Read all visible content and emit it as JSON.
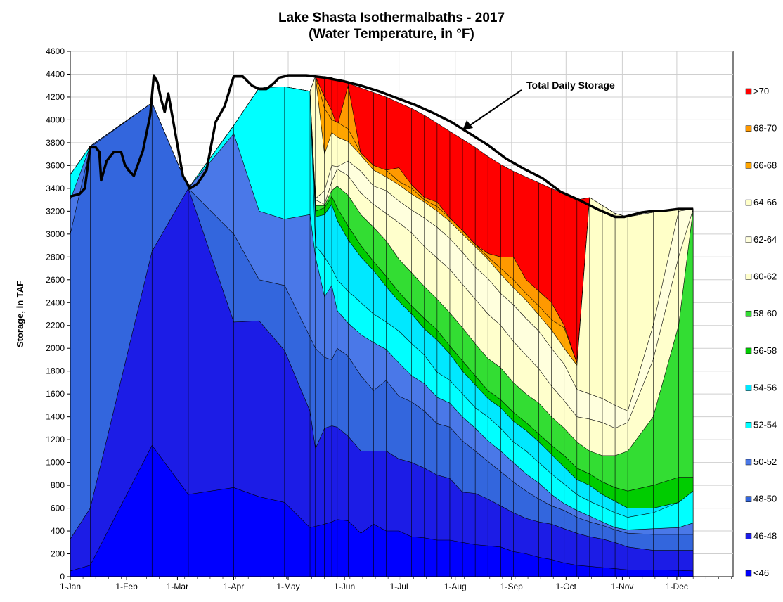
{
  "chart_data": {
    "type": "area",
    "title": "Lake Shasta Isothermalbaths - 2017",
    "subtitle": "(Water Temperature, in °F)",
    "ylabel": "Storage, in TAF",
    "xlabel": "",
    "ylim": [
      0,
      4600
    ],
    "y_ticks": [
      0,
      200,
      400,
      600,
      800,
      1000,
      1200,
      1400,
      1600,
      1800,
      2000,
      2200,
      2400,
      2600,
      2800,
      3000,
      3200,
      3400,
      3600,
      3800,
      4000,
      4200,
      4400,
      4600
    ],
    "x_ticks": [
      {
        "day": 0,
        "label": "1-Jan"
      },
      {
        "day": 31,
        "label": "1-Feb"
      },
      {
        "day": 59,
        "label": "1-Mar"
      },
      {
        "day": 90,
        "label": "1-Apr"
      },
      {
        "day": 120,
        "label": "1-May"
      },
      {
        "day": 151,
        "label": "1-Jun"
      },
      {
        "day": 181,
        "label": "1-Jul"
      },
      {
        "day": 212,
        "label": "1-Aug"
      },
      {
        "day": 243,
        "label": "1-Sep"
      },
      {
        "day": 273,
        "label": "1-Oct"
      },
      {
        "day": 304,
        "label": "1-Nov"
      },
      {
        "day": 334,
        "label": "1-Dec"
      }
    ],
    "grid": true,
    "legend_position": "right",
    "annotation": "Total Daily Storage",
    "x_days": [
      0,
      11,
      45,
      65,
      90,
      104,
      118,
      132,
      135,
      140,
      144,
      147,
      153,
      160,
      167,
      174,
      181,
      188,
      195,
      202,
      209,
      216,
      223,
      230,
      237,
      244,
      251,
      258,
      265,
      272,
      279,
      286,
      293,
      300,
      307,
      321,
      335,
      343
    ],
    "series": [
      {
        "name": "<46",
        "color": "#0000FF",
        "values": [
          50,
          100,
          1150,
          720,
          780,
          700,
          650,
          430,
          440,
          460,
          480,
          500,
          490,
          380,
          460,
          400,
          400,
          350,
          340,
          320,
          320,
          300,
          280,
          270,
          260,
          220,
          200,
          170,
          150,
          120,
          100,
          90,
          80,
          70,
          60,
          60,
          55,
          50
        ]
      },
      {
        "name": "46-48",
        "color": "#1C1CE6",
        "values": [
          330,
          600,
          2850,
          3400,
          2230,
          2240,
          1980,
          1450,
          1120,
          1300,
          1320,
          1310,
          1230,
          1100,
          1100,
          1100,
          1030,
          1000,
          950,
          890,
          860,
          740,
          730,
          680,
          620,
          560,
          510,
          480,
          460,
          420,
          380,
          350,
          330,
          300,
          260,
          230,
          230,
          230
        ]
      },
      {
        "name": "48-50",
        "color": "#3366DD",
        "values": [
          3000,
          3760,
          4150,
          3400,
          3000,
          2600,
          2550,
          2100,
          2000,
          1920,
          1900,
          2000,
          1930,
          1760,
          1630,
          1720,
          1580,
          1530,
          1450,
          1340,
          1310,
          1190,
          1100,
          1010,
          920,
          830,
          750,
          680,
          620,
          580,
          520,
          480,
          450,
          410,
          380,
          370,
          370,
          370
        ]
      },
      {
        "name": "50-52",
        "color": "#4A78E8",
        "values": [
          3300,
          3770,
          4150,
          3400,
          3880,
          3200,
          3130,
          3170,
          2800,
          2450,
          2550,
          2330,
          2220,
          2120,
          2050,
          1990,
          1870,
          1760,
          1690,
          1570,
          1520,
          1400,
          1300,
          1190,
          1100,
          1000,
          900,
          820,
          720,
          640,
          580,
          530,
          480,
          430,
          410,
          420,
          430,
          470
        ]
      },
      {
        "name": "52-54",
        "color": "#00FFFF",
        "values": [
          3520,
          3770,
          4150,
          3400,
          3950,
          4280,
          4290,
          4250,
          2900,
          2800,
          2700,
          2600,
          2500,
          2400,
          2300,
          2230,
          2150,
          2040,
          1940,
          1790,
          1720,
          1600,
          1480,
          1400,
          1300,
          1180,
          1100,
          1000,
          900,
          810,
          720,
          660,
          610,
          560,
          520,
          560,
          650,
          750
        ]
      },
      {
        "name": "54-56",
        "color": "#00E8FF",
        "values": [
          3520,
          3770,
          4150,
          3400,
          3950,
          4280,
          4290,
          4250,
          3150,
          3170,
          3260,
          3120,
          2950,
          2800,
          2680,
          2540,
          2410,
          2300,
          2170,
          2070,
          1950,
          1800,
          1680,
          1560,
          1480,
          1360,
          1280,
          1180,
          1070,
          960,
          850,
          800,
          720,
          660,
          600,
          600,
          650,
          750
        ]
      },
      {
        "name": "56-58",
        "color": "#00CC00",
        "values": [
          3520,
          3770,
          4150,
          3400,
          3950,
          4280,
          4290,
          4250,
          3200,
          3230,
          3330,
          3230,
          3070,
          2900,
          2760,
          2630,
          2490,
          2370,
          2260,
          2160,
          2020,
          1890,
          1760,
          1630,
          1550,
          1440,
          1350,
          1250,
          1150,
          1060,
          950,
          900,
          830,
          780,
          750,
          800,
          870,
          870
        ]
      },
      {
        "name": "58-60",
        "color": "#33DD33",
        "values": [
          3520,
          3770,
          4150,
          3400,
          3950,
          4280,
          4290,
          4250,
          3250,
          3250,
          3380,
          3420,
          3340,
          3170,
          3060,
          2940,
          2780,
          2660,
          2540,
          2430,
          2310,
          2180,
          2040,
          1910,
          1830,
          1700,
          1600,
          1520,
          1400,
          1300,
          1180,
          1100,
          1060,
          1060,
          1100,
          1400,
          2200,
          3220
        ]
      },
      {
        "name": "60-62",
        "color": "#FFFFCC",
        "values": [
          3520,
          3770,
          4150,
          3400,
          3950,
          4280,
          4290,
          4250,
          3300,
          3260,
          3460,
          3570,
          3510,
          3360,
          3260,
          3180,
          3100,
          3010,
          2890,
          2790,
          2690,
          2560,
          2430,
          2300,
          2200,
          2060,
          1940,
          1820,
          1670,
          1540,
          1400,
          1380,
          1350,
          1300,
          1350,
          1900,
          2800,
          3220
        ]
      },
      {
        "name": "62-64",
        "color": "#FFFFDD",
        "values": [
          3520,
          3770,
          4150,
          3400,
          3950,
          4280,
          4290,
          4250,
          3310,
          3380,
          3600,
          3590,
          3640,
          3550,
          3420,
          3380,
          3290,
          3210,
          3140,
          3060,
          2960,
          2840,
          2710,
          2610,
          2480,
          2380,
          2260,
          2150,
          2000,
          1860,
          1640,
          1600,
          1560,
          1500,
          1450,
          2200,
          3200,
          3220
        ]
      },
      {
        "name": "64-66",
        "color": "#FFFFC8",
        "values": [
          3520,
          3770,
          4150,
          3400,
          3950,
          4280,
          4290,
          4250,
          4380,
          3700,
          3890,
          3850,
          3810,
          3690,
          3560,
          3500,
          3430,
          3350,
          3280,
          3200,
          3110,
          3000,
          2890,
          2780,
          2650,
          2530,
          2420,
          2290,
          2160,
          2000,
          1850,
          3320,
          3250,
          3180,
          3150,
          3190,
          3220,
          3220
        ]
      },
      {
        "name": "66-68",
        "color": "#FFA500",
        "values": [
          3520,
          3770,
          4150,
          3400,
          3950,
          4280,
          4290,
          4250,
          4380,
          4100,
          4000,
          3980,
          3920,
          3710,
          3600,
          3560,
          3460,
          3400,
          3300,
          3240,
          3140,
          3030,
          2910,
          2800,
          2700,
          2600,
          2480,
          2370,
          2250,
          2180,
          1870,
          3320,
          3250,
          3180,
          3150,
          3190,
          3220,
          3220
        ]
      },
      {
        "name": "68-70",
        "color": "#FF9900",
        "values": [
          3520,
          3770,
          4150,
          3400,
          3950,
          4280,
          4290,
          4250,
          4380,
          4200,
          4080,
          3940,
          4300,
          3700,
          3450,
          3560,
          3580,
          3430,
          3320,
          3280,
          3140,
          3030,
          2910,
          2830,
          2800,
          2800,
          2600,
          2500,
          2400,
          2200,
          1870,
          3320,
          3250,
          3180,
          3150,
          3190,
          3220,
          3220
        ]
      },
      {
        "name": ">70",
        "color": "#FF0000",
        "values": [
          3520,
          3770,
          4150,
          3400,
          3950,
          4280,
          4290,
          4250,
          4380,
          4380,
          4370,
          4350,
          4320,
          4280,
          4240,
          4200,
          4150,
          4100,
          4040,
          3970,
          3900,
          3830,
          3760,
          3680,
          3610,
          3550,
          3500,
          3450,
          3400,
          3350,
          3300,
          3320,
          3250,
          3180,
          3150,
          3190,
          3220,
          3220
        ]
      }
    ],
    "total_daily_storage": {
      "name": "Total Daily Storage",
      "x_days": [
        0,
        5,
        8,
        11,
        14,
        16,
        17,
        20,
        24,
        28,
        30,
        32,
        35,
        40,
        44,
        46,
        48,
        50,
        52,
        54,
        58,
        62,
        66,
        70,
        75,
        80,
        85,
        90,
        95,
        100,
        104,
        108,
        112,
        115,
        118,
        120,
        125,
        130,
        140,
        150,
        160,
        170,
        180,
        190,
        200,
        210,
        220,
        230,
        240,
        250,
        260,
        270,
        280,
        290,
        300,
        305,
        310,
        315,
        320,
        325,
        330,
        335,
        340,
        343
      ],
      "values": [
        3330,
        3350,
        3400,
        3760,
        3760,
        3720,
        3470,
        3640,
        3720,
        3720,
        3610,
        3560,
        3510,
        3730,
        4040,
        4390,
        4330,
        4180,
        4070,
        4230,
        3870,
        3510,
        3400,
        3440,
        3560,
        3980,
        4120,
        4380,
        4380,
        4300,
        4270,
        4270,
        4320,
        4370,
        4380,
        4390,
        4390,
        4390,
        4370,
        4340,
        4300,
        4250,
        4190,
        4130,
        4060,
        3980,
        3880,
        3780,
        3660,
        3570,
        3490,
        3370,
        3300,
        3220,
        3150,
        3150,
        3170,
        3190,
        3200,
        3200,
        3210,
        3220,
        3220,
        3220
      ]
    }
  }
}
